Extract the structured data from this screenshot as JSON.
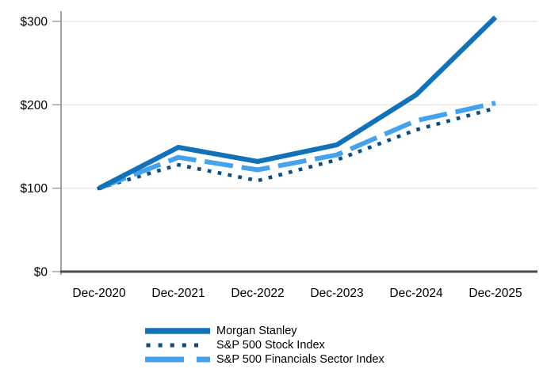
{
  "chart_data": {
    "type": "line",
    "title": "",
    "xlabel": "",
    "ylabel": "",
    "categories": [
      "Dec-2020",
      "Dec-2021",
      "Dec-2022",
      "Dec-2023",
      "Dec-2024",
      "Dec-2025"
    ],
    "series": [
      {
        "name": "Morgan Stanley",
        "style": "solid",
        "color": "#1372B7",
        "values": [
          100,
          149,
          132,
          152,
          212,
          305
        ]
      },
      {
        "name": "S&P 500 Stock Index",
        "style": "dotted",
        "color": "#0E4F80",
        "values": [
          100,
          128,
          109,
          134,
          170,
          196
        ]
      },
      {
        "name": "S&P 500 Financials Sector Index",
        "style": "dashed",
        "color": "#46A2EA",
        "values": [
          100,
          137,
          122,
          140,
          181,
          202
        ]
      }
    ],
    "ylim": [
      0,
      300
    ],
    "y_ticks": [
      0,
      100,
      200,
      300
    ],
    "y_tick_labels": [
      "$0",
      "$100",
      "$200",
      "$300"
    ],
    "grid": true,
    "legend_position": "bottom",
    "axis_colors": {
      "y_axis": "#A0A0A0",
      "x_axis": "#4A4A4A",
      "gridline": "#E8E8E8",
      "tick": "#A0A0A0",
      "label": "#000000"
    }
  }
}
